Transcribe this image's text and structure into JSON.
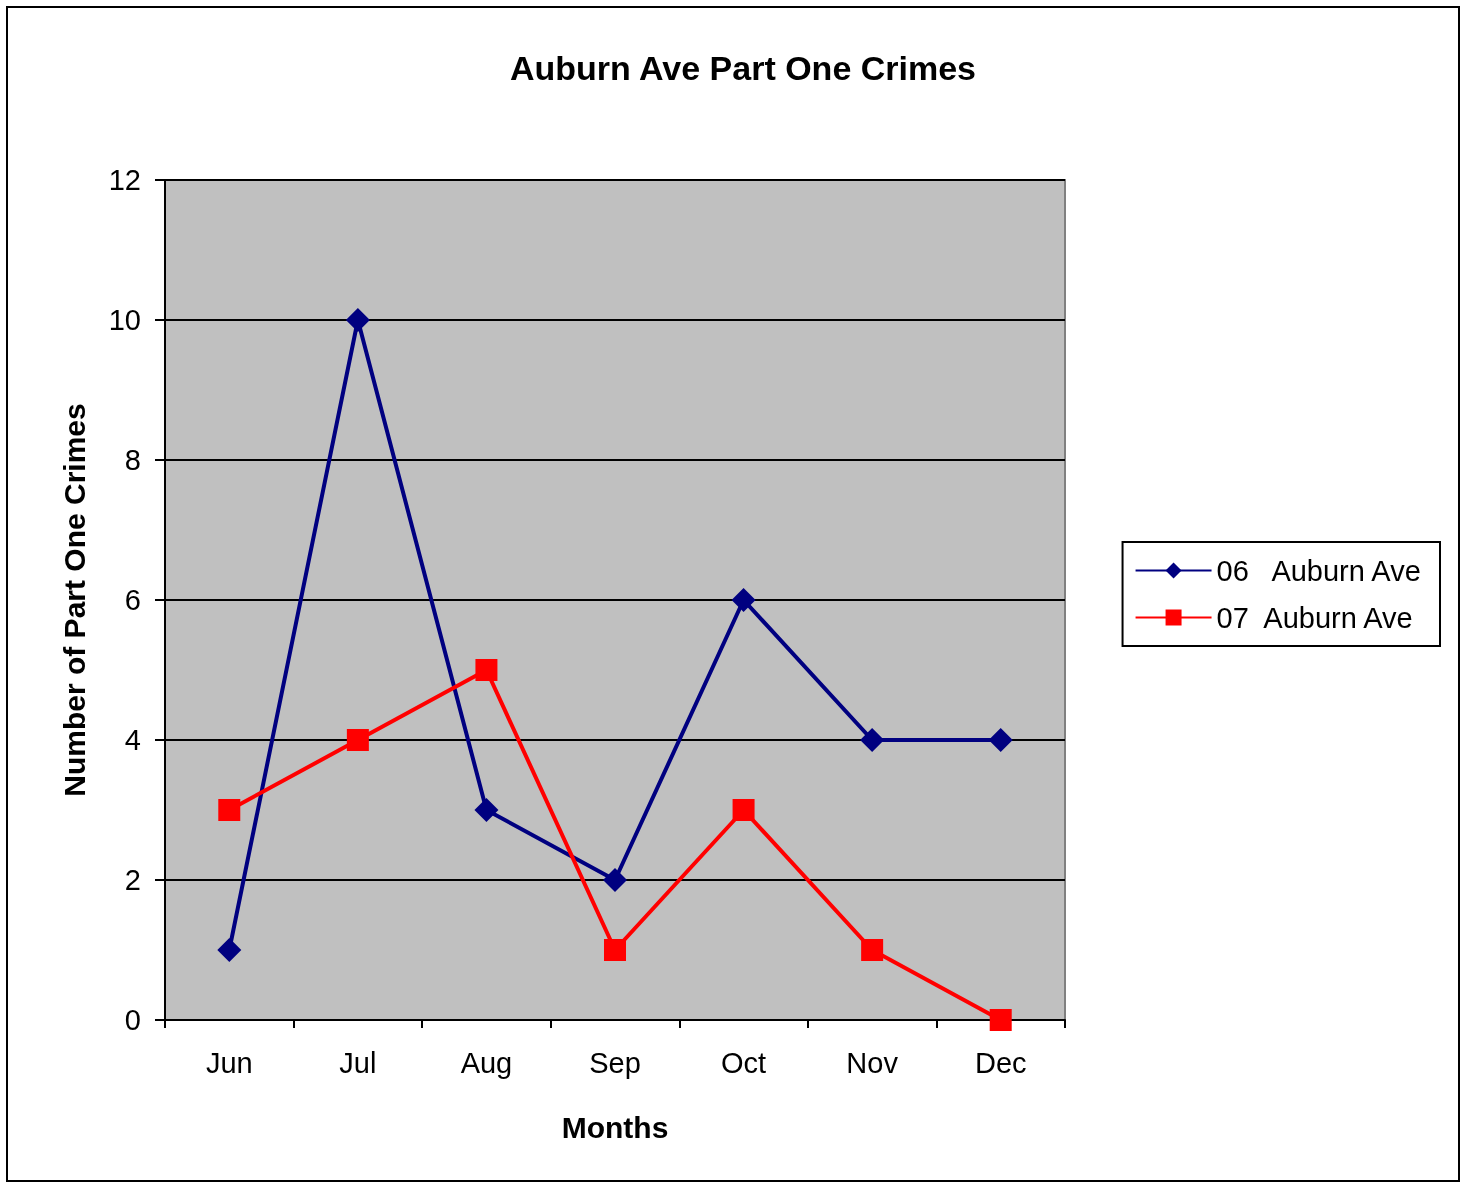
{
  "chart_data": {
    "type": "line",
    "title": "Auburn Ave Part One Crimes",
    "xlabel": "Months",
    "ylabel": "Number of Part One Crimes",
    "categories": [
      "Jun",
      "Jul",
      "Aug",
      "Sep",
      "Oct",
      "Nov",
      "Dec"
    ],
    "series": [
      {
        "name": "06   Auburn Ave",
        "color": "#000080",
        "marker": "diamond",
        "values": [
          1,
          10,
          3,
          2,
          6,
          4,
          4
        ]
      },
      {
        "name": "07  Auburn Ave",
        "color": "#ff0000",
        "marker": "square",
        "values": [
          3,
          4,
          5,
          1,
          3,
          1,
          0
        ]
      }
    ],
    "ylim": [
      0,
      12
    ],
    "yticks": [
      0,
      2,
      4,
      6,
      8,
      10,
      12
    ],
    "grid": "y",
    "legend": "right",
    "line_style": "solid"
  }
}
